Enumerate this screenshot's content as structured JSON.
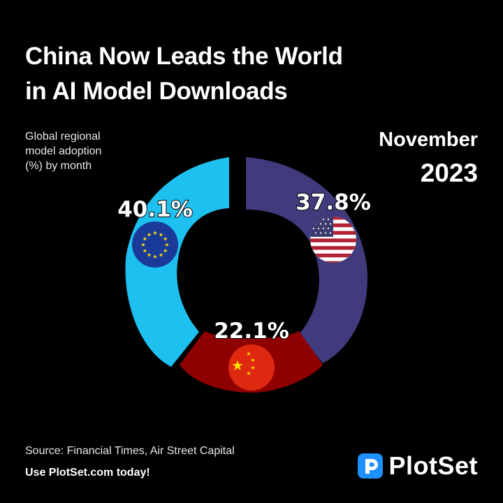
{
  "header": {
    "title_line1": "China Now Leads the World",
    "title_line2": "in AI Model Downloads",
    "subtitle_line1": "Global regional",
    "subtitle_line2": "model adoption",
    "subtitle_line3": "(%) by month",
    "month": "November",
    "year": "2023"
  },
  "chart_data": {
    "type": "pie",
    "title": "China Now Leads the World in AI Model Downloads",
    "subtitle": "Global regional model adoption (%) by month",
    "period": "November 2023",
    "slices": [
      {
        "label": "40.1%",
        "value": 40.1,
        "color": "#1ec0ef",
        "icon": "eu-flag-icon"
      },
      {
        "label": "37.8%",
        "value": 37.8,
        "color": "#3f3b7c",
        "icon": "us-flag-icon"
      },
      {
        "label": "22.1%",
        "value": 22.1,
        "color": "#8f0000",
        "icon": "china-flag-icon"
      }
    ]
  },
  "footer": {
    "source": "Source: Financial Times, Air Street Capital",
    "cta": "Use PlotSet.com today!",
    "brand": "PlotSet",
    "brand_color": "#1e90ff"
  }
}
